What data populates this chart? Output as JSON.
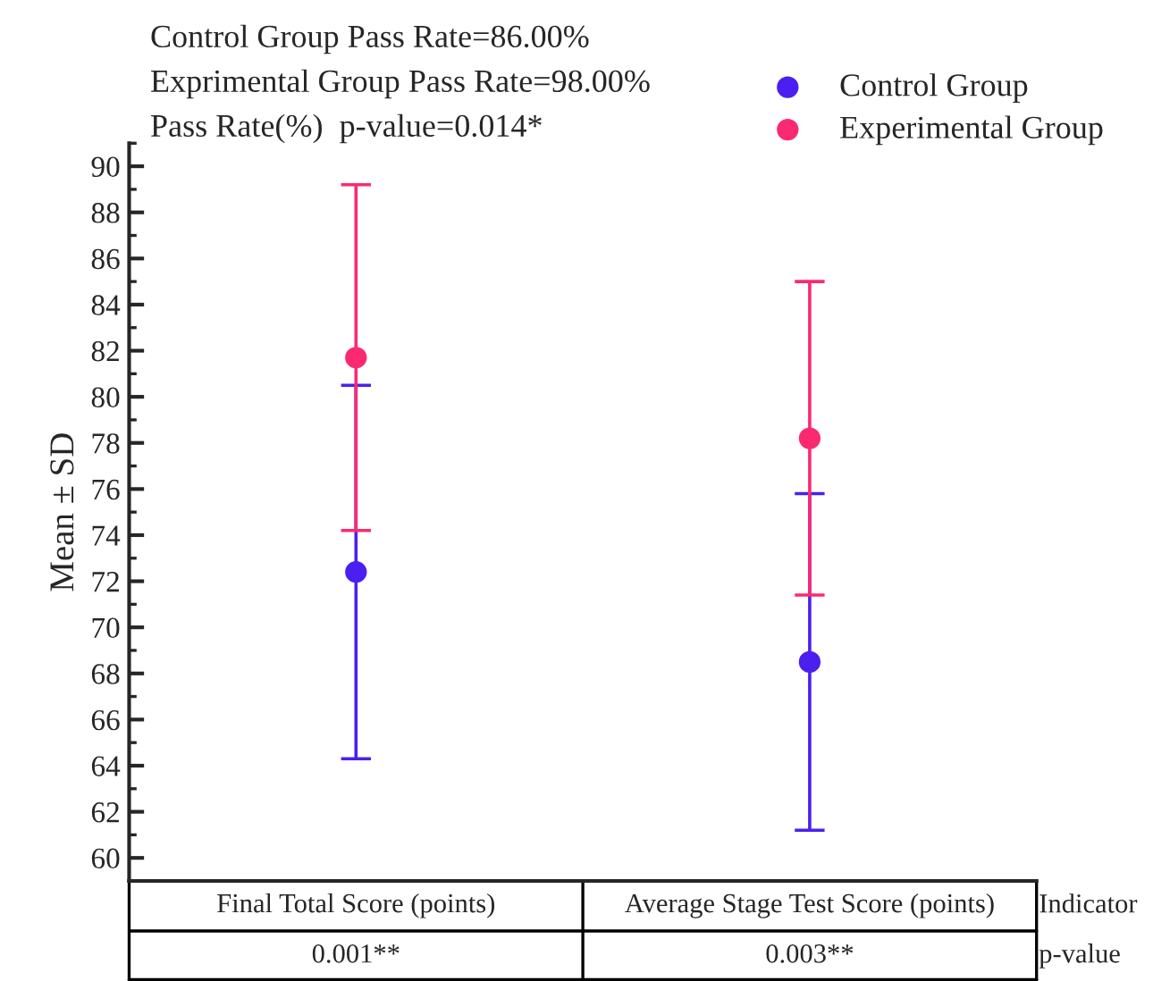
{
  "chart_data": {
    "type": "scatter",
    "ylabel": "Mean ± SD",
    "categories": [
      "Final Total Score (points)",
      "Average Stage Test Score (points)"
    ],
    "series": [
      {
        "name": "Control Group",
        "color": "#4b1ff0",
        "values": [
          72.4,
          68.5
        ],
        "errors": [
          8.1,
          7.3
        ]
      },
      {
        "name": "Experimental Group",
        "color": "#fb2a70",
        "values": [
          81.7,
          78.2
        ],
        "errors": [
          7.5,
          6.8
        ]
      }
    ],
    "ylim": [
      59,
      91
    ],
    "yticks": [
      60,
      62,
      64,
      66,
      68,
      70,
      72,
      74,
      76,
      78,
      80,
      82,
      84,
      86,
      88,
      90
    ],
    "marker": "circle",
    "legend": "top right",
    "grid": false,
    "annotations": [
      "Control Group Pass Rate=86.00%",
      "Exprimental Group Pass Rate=98.00%",
      "Pass Rate(%)  p-value=0.014*",
      "Indicator",
      "p-value",
      "0.001**",
      "0.003**"
    ]
  }
}
